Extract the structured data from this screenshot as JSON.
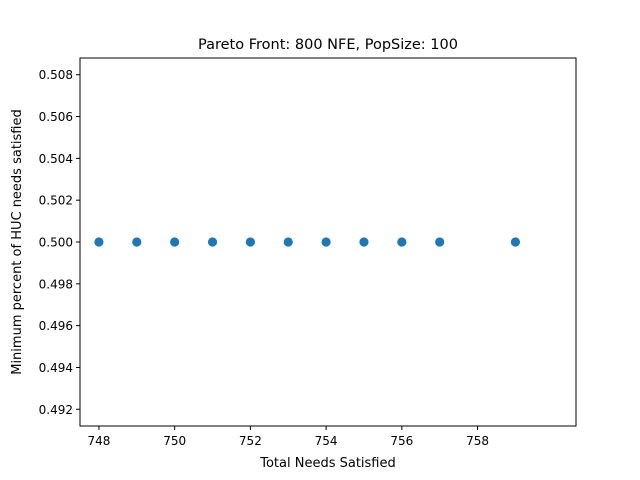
{
  "chart_data": {
    "type": "scatter",
    "title": "Pareto Front: 800 NFE, PopSize: 100",
    "xlabel": "Total Needs Satisfied",
    "ylabel": "Minimum percent of HUC needs satisfied",
    "xlim": [
      747.5,
      760.6
    ],
    "ylim": [
      0.4912,
      0.5088
    ],
    "xticks": [
      748,
      750,
      752,
      754,
      756,
      758
    ],
    "xtick_labels": [
      "748",
      "750",
      "752",
      "754",
      "756",
      "758"
    ],
    "yticks": [
      0.492,
      0.494,
      0.496,
      0.498,
      0.5,
      0.502,
      0.504,
      0.506,
      0.508
    ],
    "ytick_labels": [
      "0.492",
      "0.494",
      "0.496",
      "0.498",
      "0.500",
      "0.502",
      "0.504",
      "0.506",
      "0.508"
    ],
    "grid": false,
    "legend": false,
    "marker_color": "#1f77b4",
    "points": [
      {
        "x": 748,
        "y": 0.5
      },
      {
        "x": 749,
        "y": 0.5
      },
      {
        "x": 750,
        "y": 0.5
      },
      {
        "x": 751,
        "y": 0.5
      },
      {
        "x": 752,
        "y": 0.5
      },
      {
        "x": 753,
        "y": 0.5
      },
      {
        "x": 754,
        "y": 0.5
      },
      {
        "x": 755,
        "y": 0.5
      },
      {
        "x": 756,
        "y": 0.5
      },
      {
        "x": 757,
        "y": 0.5
      },
      {
        "x": 759,
        "y": 0.5
      }
    ]
  }
}
